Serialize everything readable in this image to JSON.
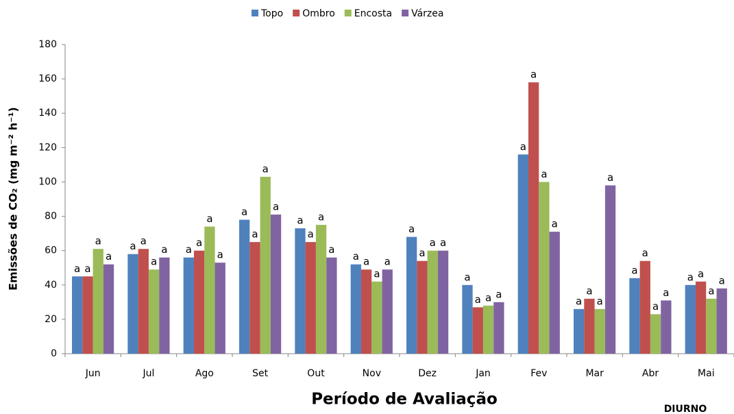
{
  "chart_data": {
    "type": "bar",
    "y_label": "Emissões de CO₂ (mg m⁻² h⁻¹)",
    "x_label": "Período de Avaliação",
    "annotation": "DIURNO",
    "categories": [
      "Jun",
      "Jul",
      "Ago",
      "Set",
      "Out",
      "Nov",
      "Dez",
      "Jan",
      "Fev",
      "Mar",
      "Abr",
      "Mai"
    ],
    "series": [
      {
        "name": "Topo",
        "color": "#4f81bd",
        "values": [
          45,
          58,
          56,
          78,
          73,
          52,
          68,
          40,
          116,
          26,
          44,
          40
        ],
        "letters": [
          "a",
          "a",
          "a",
          "a",
          "a",
          "a",
          "a",
          "a",
          "a",
          "a",
          "a",
          "a"
        ]
      },
      {
        "name": "Ombro",
        "color": "#c0504d",
        "values": [
          45,
          61,
          60,
          65,
          65,
          49,
          54,
          27,
          158,
          32,
          54,
          42
        ],
        "letters": [
          "a",
          "a",
          "a",
          "a",
          "a",
          "a",
          "a",
          "a",
          "a",
          "a",
          "a",
          "a"
        ]
      },
      {
        "name": "Encosta",
        "color": "#9bbb59",
        "values": [
          61,
          49,
          74,
          103,
          75,
          42,
          60,
          28,
          100,
          26,
          23,
          32
        ],
        "letters": [
          "a",
          "a",
          "a",
          "a",
          "a",
          "a",
          "a",
          "a",
          "a",
          "a",
          "a",
          "a"
        ]
      },
      {
        "name": "Várzea",
        "color": "#8064a2",
        "values": [
          52,
          56,
          53,
          81,
          56,
          49,
          60,
          30,
          71,
          98,
          31,
          38
        ],
        "letters": [
          "a",
          "a",
          "a",
          "a",
          "a",
          "a",
          "a",
          "a",
          "a",
          "a",
          "a",
          "a"
        ]
      }
    ],
    "ylim": [
      0,
      180
    ],
    "yticks": [
      0,
      20,
      40,
      60,
      80,
      100,
      120,
      140,
      160,
      180
    ],
    "legend": "top"
  }
}
